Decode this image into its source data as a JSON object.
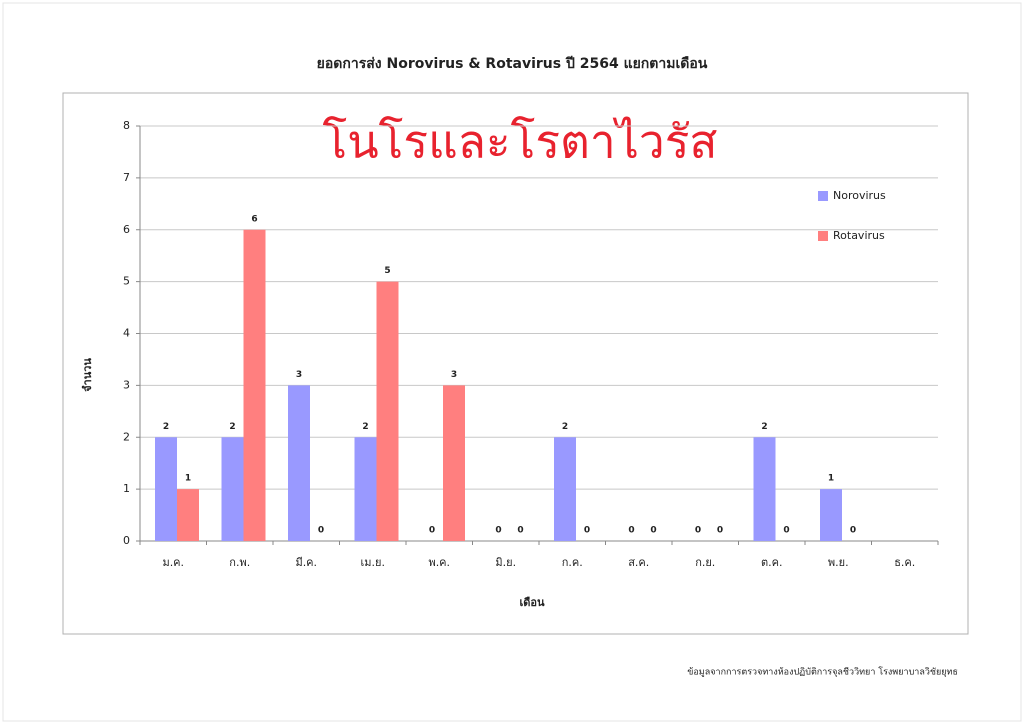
{
  "chart_data": {
    "type": "bar",
    "title": "ยอดการส่ง Norovirus & Rotavirus ปี 2564 แยกตามเดือน",
    "annotation": "โนโรและโรตาไวรัส",
    "y_label": "จำนวน",
    "x_label": "เดือน",
    "footnote": "ข้อมูลจากการตรวจทางห้องปฏิบัติการจุลชีววิทยา โรงพยาบาลวิชัยยุทธ",
    "categories": [
      "ม.ค.",
      "ก.พ.",
      "มี.ค.",
      "เม.ย.",
      "พ.ค.",
      "มิ.ย.",
      "ก.ค.",
      "ส.ค.",
      "ก.ย.",
      "ต.ค.",
      "พ.ย.",
      "ธ.ค."
    ],
    "series": [
      {
        "name": "Norovirus",
        "color": "#9999ff",
        "values": [
          2,
          2,
          3,
          2,
          0,
          0,
          2,
          0,
          0,
          2,
          1,
          null
        ]
      },
      {
        "name": "Rotavirus",
        "color": "#ff7f7f",
        "values": [
          1,
          6,
          0,
          5,
          3,
          0,
          0,
          0,
          0,
          0,
          0,
          null
        ]
      }
    ],
    "ylim": [
      0,
      8
    ],
    "yticks": [
      0,
      1,
      2,
      3,
      4,
      5,
      6,
      7,
      8
    ],
    "grid": true,
    "legend": "right"
  }
}
